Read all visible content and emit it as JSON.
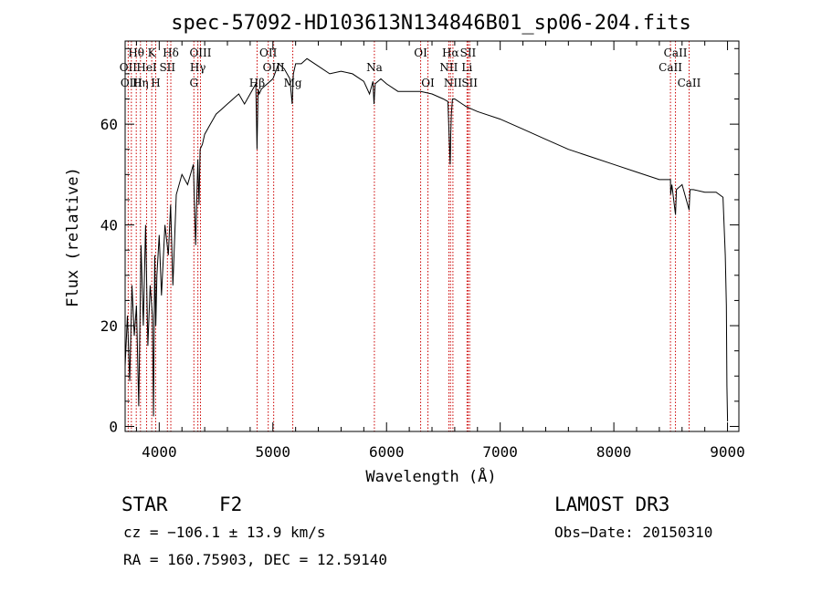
{
  "chart_data": {
    "type": "line",
    "title": "spec-57092-HD103613N134846B01_sp06-204.fits",
    "xlabel": "Wavelength (Å)",
    "ylabel": "Flux (relative)",
    "xlim": [
      3700,
      9100
    ],
    "ylim": [
      -1,
      76.5
    ],
    "xticks": [
      4000,
      5000,
      6000,
      7000,
      8000,
      9000
    ],
    "xtick_labels": [
      "4000",
      "5000",
      "6000",
      "7000",
      "8000",
      "9000"
    ],
    "yticks": [
      0,
      20,
      40,
      60
    ],
    "ytick_labels": [
      "0",
      "20",
      "40",
      "60"
    ],
    "series": [
      {
        "name": "flux",
        "x": [
          3700,
          3720,
          3740,
          3760,
          3780,
          3800,
          3820,
          3840,
          3860,
          3880,
          3900,
          3920,
          3940,
          3950,
          3960,
          3970,
          3980,
          4000,
          4020,
          4050,
          4080,
          4100,
          4120,
          4150,
          4200,
          4250,
          4300,
          4320,
          4340,
          4350,
          4360,
          4380,
          4400,
          4450,
          4500,
          4550,
          4600,
          4650,
          4700,
          4750,
          4800,
          4850,
          4860,
          4870,
          4880,
          4900,
          4950,
          5000,
          5050,
          5100,
          5150,
          5170,
          5180,
          5200,
          5250,
          5300,
          5400,
          5500,
          5600,
          5700,
          5800,
          5850,
          5880,
          5890,
          5900,
          5950,
          6000,
          6100,
          6200,
          6300,
          6400,
          6500,
          6540,
          6560,
          6565,
          6570,
          6580,
          6600,
          6700,
          6800,
          7000,
          7200,
          7400,
          7600,
          7800,
          8000,
          8200,
          8400,
          8498,
          8500,
          8510,
          8542,
          8550,
          8600,
          8662,
          8670,
          8700,
          8800,
          8900,
          8960,
          8980,
          8990,
          8995,
          9000
        ],
        "y": [
          12,
          22,
          9,
          28,
          18,
          24,
          4,
          36,
          20,
          40,
          16,
          28,
          22,
          2,
          34,
          20,
          30,
          38,
          26,
          40,
          34,
          44,
          28,
          46,
          50,
          48,
          52,
          36,
          53,
          44,
          55,
          56,
          58,
          60,
          62,
          63,
          64,
          65,
          66,
          64,
          66,
          68,
          55,
          67,
          66,
          67,
          68,
          69,
          72,
          71,
          69,
          64,
          70,
          72,
          72,
          73,
          71.5,
          70,
          70.5,
          70,
          68.5,
          66,
          68.5,
          64,
          68,
          69,
          68,
          66.5,
          66.5,
          66.5,
          66,
          65,
          64.5,
          52,
          58,
          62,
          65,
          65,
          63.5,
          62.5,
          61,
          59,
          57,
          55,
          53.5,
          52,
          50.5,
          49,
          49,
          46,
          48,
          42,
          47,
          48,
          43,
          47,
          47,
          46.5,
          46.5,
          45.5,
          34,
          24,
          8,
          1
        ]
      }
    ],
    "lines": [
      {
        "name": "H-theta",
        "label": "Hθ",
        "wavelength": 3798,
        "row": 1
      },
      {
        "name": "OII-a",
        "label": "OII",
        "wavelength": 3727,
        "row": 2
      },
      {
        "name": "OIII-a",
        "label": "OIII",
        "wavelength": 3755,
        "row": 3
      },
      {
        "name": "K",
        "label": "K",
        "wavelength": 3934,
        "row": 1
      },
      {
        "name": "HeI",
        "label": "HeI",
        "wavelength": 3889,
        "row": 2
      },
      {
        "name": "H-eta",
        "label": "Hη",
        "wavelength": 3835,
        "row": 3
      },
      {
        "name": "H-delta",
        "label": "Hδ",
        "wavelength": 4102,
        "row": 1
      },
      {
        "name": "SII-a",
        "label": "SII",
        "wavelength": 4072,
        "row": 2
      },
      {
        "name": "H",
        "label": "H",
        "wavelength": 3969,
        "row": 3
      },
      {
        "name": "OIII-b",
        "label": "OIII",
        "wavelength": 4363,
        "row": 1
      },
      {
        "name": "H-gamma",
        "label": "Hγ",
        "wavelength": 4340,
        "row": 2
      },
      {
        "name": "G",
        "label": "G",
        "wavelength": 4305,
        "row": 3
      },
      {
        "name": "OII-b",
        "label": "OII",
        "wavelength": 4959,
        "row": 1
      },
      {
        "name": "OIII-c",
        "label": "OIII",
        "wavelength": 5007,
        "row": 2
      },
      {
        "name": "H-beta",
        "label": "Hβ",
        "wavelength": 4861,
        "row": 3
      },
      {
        "name": "Mg",
        "label": "Mg",
        "wavelength": 5175,
        "row": 3
      },
      {
        "name": "Na",
        "label": "Na",
        "wavelength": 5893,
        "row": 2
      },
      {
        "name": "OI-a",
        "label": "OI",
        "wavelength": 6300,
        "row": 1
      },
      {
        "name": "OI-b",
        "label": "OI",
        "wavelength": 6364,
        "row": 3
      },
      {
        "name": "H-alpha",
        "label": "Hα",
        "wavelength": 6563,
        "row": 1
      },
      {
        "name": "SII-b",
        "label": "SII",
        "wavelength": 6717,
        "row": 1
      },
      {
        "name": "NII-a",
        "label": "NII",
        "wavelength": 6548,
        "row": 2
      },
      {
        "name": "Li",
        "label": "Li",
        "wavelength": 6708,
        "row": 2
      },
      {
        "name": "NII-b",
        "label": "NII",
        "wavelength": 6584,
        "row": 3
      },
      {
        "name": "SII-c",
        "label": "SII",
        "wavelength": 6731,
        "row": 3
      },
      {
        "name": "CaII-a",
        "label": "CaII",
        "wavelength": 8542,
        "row": 1
      },
      {
        "name": "CaII-b",
        "label": "CaII",
        "wavelength": 8498,
        "row": 2
      },
      {
        "name": "CaII-c",
        "label": "CaII",
        "wavelength": 8662,
        "row": 3
      }
    ]
  },
  "info": {
    "class": "STAR",
    "subclass": "F2",
    "survey": "LAMOST DR3",
    "cz": "cz = −106.1 ± 13.9 km/s",
    "obs_date": "Obs−Date: 20150310",
    "coords": "RA = 160.75903, DEC =  12.59140"
  },
  "colors": {
    "spectrum": "#000000",
    "line_markers": "#cc0000"
  }
}
